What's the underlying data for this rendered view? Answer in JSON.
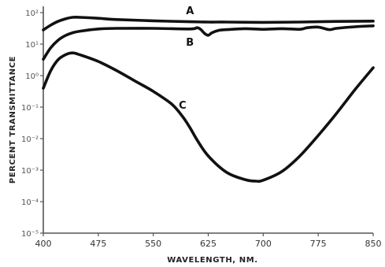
{
  "chart_data": {
    "type": "line",
    "title": "",
    "xlabel": "WAVELENGTH, NM.",
    "ylabel": "PERCENT TRANSMITTANCE",
    "xlim": [
      400,
      850
    ],
    "ylim": [
      -5,
      2
    ],
    "yscale": "log",
    "x_ticks": [
      400,
      475,
      550,
      625,
      700,
      775,
      850
    ],
    "x_tick_labels": [
      "400",
      "475",
      "550",
      "625",
      "700",
      "775",
      "850"
    ],
    "y_ticks": [
      2,
      1,
      0,
      -1,
      -2,
      -3,
      -4,
      -5
    ],
    "y_tick_labels": [
      "10²",
      "10¹",
      "10⁰",
      "10⁻¹",
      "10⁻²",
      "10⁻³",
      "10⁻⁴",
      "10⁻⁵"
    ],
    "grid": false,
    "series": [
      {
        "name": "A",
        "x": [
          400,
          410,
          420,
          430,
          440,
          450,
          475,
          500,
          550,
          600,
          625,
          650,
          700,
          750,
          800,
          850
        ],
        "y": [
          1.45,
          1.6,
          1.72,
          1.8,
          1.85,
          1.85,
          1.82,
          1.78,
          1.74,
          1.71,
          1.7,
          1.7,
          1.69,
          1.7,
          1.72,
          1.73
        ]
      },
      {
        "name": "B",
        "x": [
          400,
          410,
          420,
          430,
          440,
          450,
          475,
          500,
          550,
          600,
          610,
          615,
          620,
          625,
          630,
          640,
          650,
          675,
          700,
          725,
          750,
          760,
          775,
          790,
          800,
          825,
          850
        ],
        "y": [
          0.52,
          0.88,
          1.12,
          1.27,
          1.36,
          1.41,
          1.48,
          1.5,
          1.5,
          1.48,
          1.52,
          1.46,
          1.34,
          1.28,
          1.36,
          1.44,
          1.46,
          1.49,
          1.47,
          1.49,
          1.47,
          1.52,
          1.54,
          1.46,
          1.5,
          1.55,
          1.58
        ]
      },
      {
        "name": "C",
        "x": [
          400,
          410,
          420,
          430,
          440,
          450,
          475,
          500,
          525,
          550,
          575,
          590,
          600,
          610,
          625,
          650,
          675,
          690,
          700,
          725,
          750,
          775,
          800,
          825,
          850
        ],
        "y": [
          -0.4,
          0.15,
          0.5,
          0.66,
          0.72,
          0.66,
          0.45,
          0.16,
          -0.17,
          -0.5,
          -0.9,
          -1.3,
          -1.65,
          -2.05,
          -2.55,
          -3.07,
          -3.3,
          -3.35,
          -3.32,
          -3.05,
          -2.55,
          -1.9,
          -1.2,
          -0.45,
          0.25
        ]
      }
    ]
  }
}
